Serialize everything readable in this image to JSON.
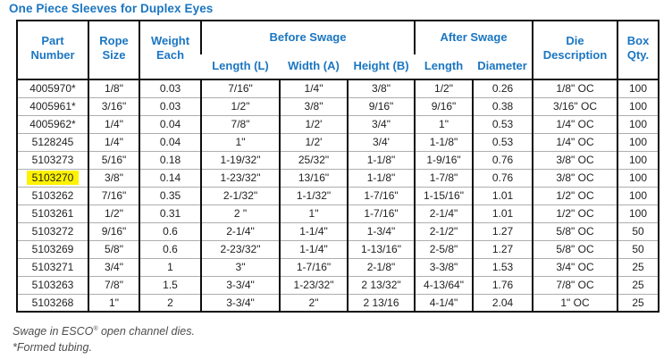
{
  "title": "One Piece Sleeves for Duplex Eyes",
  "colors": {
    "accent": "#1b76c2",
    "highlight": "#fff200",
    "border_dark": "#0d0d0d",
    "border_light": "#adadad"
  },
  "table": {
    "header": {
      "part_number": "Part Number",
      "rope_size": "Rope Size",
      "weight_each": "Weight Each",
      "before_swage": "Before Swage",
      "before_cols": [
        "Length (L)",
        "Width (A)",
        "Height (B)"
      ],
      "after_swage": "After Swage",
      "after_cols": [
        "Length",
        "Diameter"
      ],
      "die_description": "Die Description",
      "box_qty": "Box Qty."
    },
    "column_keys": [
      "part_number",
      "rope_size",
      "weight_each",
      "before_length",
      "before_width",
      "before_height",
      "after_length",
      "after_diameter",
      "die_description",
      "box_qty"
    ],
    "highlighted_part": "5103270",
    "rows": [
      [
        "4005970*",
        "1/8\"",
        "0.03",
        "7/16\"",
        "1/4\"",
        "3/8\"",
        "1/2\"",
        "0.26",
        "1/8\" OC",
        "100"
      ],
      [
        "4005961*",
        "3/16\"",
        "0.03",
        "1/2\"",
        "3/8\"",
        "9/16\"",
        "9/16\"",
        "0.38",
        "3/16\" OC",
        "100"
      ],
      [
        "4005962*",
        "1/4\"",
        "0.04",
        "7/8\"",
        "1/2'",
        "3/4\"",
        "1\"",
        "0.53",
        "1/4\" OC",
        "100"
      ],
      [
        "5128245",
        "1/4\"",
        "0.04",
        "1\"",
        "1/2'",
        "3/4'",
        "1-1/8\"",
        "0.53",
        "1/4\" OC",
        "100"
      ],
      [
        "5103273",
        "5/16\"",
        "0.18",
        "1-19/32\"",
        "25/32\"",
        "1-1/8\"",
        "1-9/16\"",
        "0.76",
        "3/8\" OC",
        "100"
      ],
      [
        "5103270",
        "3/8\"",
        "0.14",
        "1-23/32\"",
        "13/16\"",
        "1-1/8\"",
        "1-7/8\"",
        "0.76",
        "3/8\" OC",
        "100"
      ],
      [
        "5103262",
        "7/16\"",
        "0.35",
        "2-1/32\"",
        "1-1/32\"",
        "1-7/16\"",
        "1-15/16\"",
        "1.01",
        "1/2\" OC",
        "100"
      ],
      [
        "5103261",
        "1/2\"",
        "0.31",
        "2 \"",
        "1\"",
        "1-7/16\"",
        "2-1/4\"",
        "1.01",
        "1/2\" OC",
        "100"
      ],
      [
        "5103272",
        "9/16\"",
        "0.6",
        "2-1/4\"",
        "1-1/4\"",
        "1-3/4\"",
        "2-1/2\"",
        "1.27",
        "5/8\" OC",
        "50"
      ],
      [
        "5103269",
        "5/8\"",
        "0.6",
        "2-23/32\"",
        "1-1/4\"",
        "1-13/16\"",
        "2-5/8\"",
        "1.27",
        "5/8\" OC",
        "50"
      ],
      [
        "5103271",
        "3/4\"",
        "1",
        "3\"",
        "1-7/16\"",
        "2-1/8\"",
        "3-3/8\"",
        "1.53",
        "3/4\" OC",
        "25"
      ],
      [
        "5103263",
        "7/8\"",
        "1.5",
        "3-3/4\"",
        "1-23/32\"",
        "2 13/32\"",
        "4-13/64\"",
        "1.76",
        "7/8\" OC",
        "25"
      ],
      [
        "5103268",
        "1\"",
        "2",
        "3-3/4\"",
        "2\"",
        "2 13/16",
        "4-1/4\"",
        "2.04",
        "1\" OC",
        "25"
      ]
    ]
  },
  "footnotes": {
    "swage_pre": "Swage in ESCO",
    "swage_sup": "®",
    "swage_post": " open channel dies.",
    "formed": "*Formed tubing."
  }
}
